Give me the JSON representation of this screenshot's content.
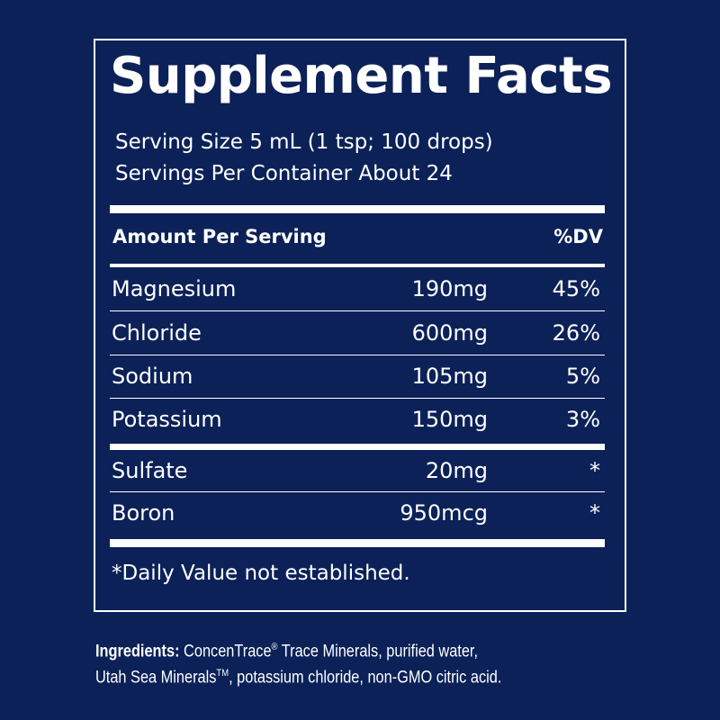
{
  "title": "Supplement Facts",
  "serving_size": "Serving Size 5 mL (1 tsp; 100 drops)",
  "servings_per_container": "Servings Per Container About 24",
  "header": {
    "amount": "Amount Per Serving",
    "dv": "%DV"
  },
  "rows": [
    {
      "name": "Magnesium",
      "amount": "190mg",
      "dv": "45%"
    },
    {
      "name": "Chloride",
      "amount": "600mg",
      "dv": "26%"
    },
    {
      "name": "Sodium",
      "amount": "105mg",
      "dv": "5%"
    },
    {
      "name": "Potassium",
      "amount": "150mg",
      "dv": "3%"
    },
    {
      "name": "Sulfate",
      "amount": "20mg",
      "dv": "*"
    },
    {
      "name": "Boron",
      "amount": "950mcg",
      "dv": "*"
    }
  ],
  "footnote": "*Daily Value not established.",
  "ingredients": {
    "label": "Ingredients:",
    "part1": " ConcenTrace",
    "reg": "®",
    "part2": " Trace Minerals, purified water,",
    "part3": "Utah Sea Minerals",
    "tm": "TM",
    "part4": ", potassium chloride, non-GMO citric acid."
  },
  "colors": {
    "background": "#0b2158",
    "text": "#ffffff"
  }
}
